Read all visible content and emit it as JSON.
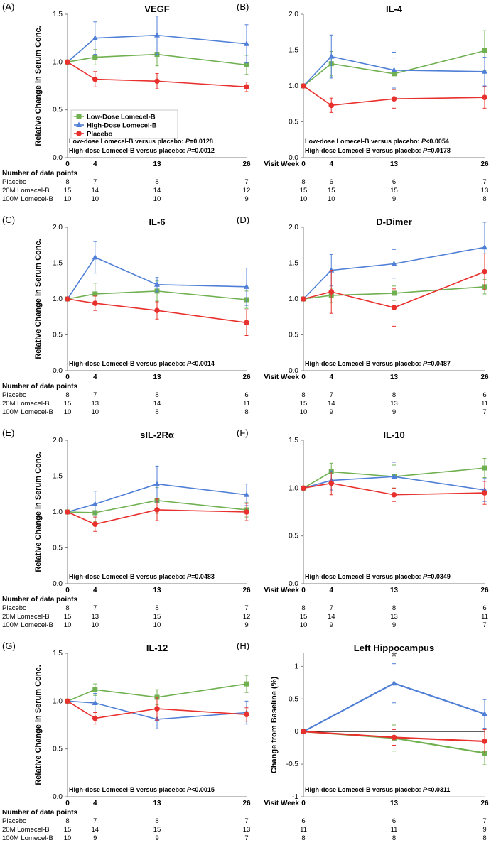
{
  "colors": {
    "low": "#70b051",
    "high": "#4f7fd6",
    "placebo": "#e8302d",
    "axis": "#7f7f7f"
  },
  "legend": {
    "low": "Low-Dose Lomecel-B",
    "high": "High-Dose Lomecel-B",
    "placebo": "Placebo"
  },
  "row_labels": {
    "title": "Number of data points",
    "placebo": "Placebo",
    "low": "20M Lomecel-B",
    "high": "100M Lomecel-B"
  },
  "visit_week_label": "Visit Week",
  "chart_data": [
    {
      "panel": "(A)",
      "title": "VEGF",
      "type": "line",
      "x": [
        0,
        4,
        13,
        26
      ],
      "ylim": [
        0,
        1.5
      ],
      "yticks": [
        0,
        0.5,
        1.0,
        1.5
      ],
      "ylabel": "Relative Change in Serum Conc.",
      "series": [
        {
          "key": "low",
          "values": [
            1.0,
            1.05,
            1.08,
            0.97
          ],
          "err": [
            0,
            0.08,
            0.12,
            0.1
          ]
        },
        {
          "key": "high",
          "values": [
            1.0,
            1.25,
            1.28,
            1.19
          ],
          "err": [
            0,
            0.17,
            0.2,
            0.2
          ]
        },
        {
          "key": "placebo",
          "values": [
            1.0,
            0.82,
            0.8,
            0.74
          ],
          "err": [
            0,
            0.08,
            0.08,
            0.05
          ]
        }
      ],
      "stats": [
        "Low-dose Lomecel-B versus placebo:  |P|=0.0128",
        "High-dose Lomecel-B versus placebo:  |P|=0.0012"
      ],
      "show_legend": true,
      "counts": {
        "placebo": [
          "8",
          "7",
          "8",
          "7"
        ],
        "low": [
          "15",
          "14",
          "14",
          "12"
        ],
        "high": [
          "10",
          "10",
          "10",
          "9"
        ]
      }
    },
    {
      "panel": "(B)",
      "title": "IL-4",
      "type": "line",
      "x": [
        0,
        4,
        13,
        26
      ],
      "ylim": [
        0,
        2.0
      ],
      "yticks": [
        0,
        0.5,
        1.0,
        1.5,
        2.0
      ],
      "ylabel": "",
      "series": [
        {
          "key": "low",
          "values": [
            1.0,
            1.31,
            1.17,
            1.49
          ],
          "err": [
            0,
            0.17,
            0.22,
            0.28
          ]
        },
        {
          "key": "high",
          "values": [
            1.0,
            1.41,
            1.22,
            1.2
          ],
          "err": [
            0,
            0.3,
            0.25,
            0.2
          ]
        },
        {
          "key": "placebo",
          "values": [
            1.0,
            0.73,
            0.82,
            0.84
          ],
          "err": [
            0,
            0.1,
            0.13,
            0.15
          ]
        }
      ],
      "stats": [
        "Low-dose Lomecel-B versus placebo:  |P|<0.0054",
        "High-dose Lomecel-B versus placebo:  |P|=0.0178"
      ],
      "show_legend": false,
      "counts": {
        "placebo": [
          "8",
          "6",
          "6",
          "7"
        ],
        "low": [
          "15",
          "15",
          "15",
          "13"
        ],
        "high": [
          "10",
          "10",
          "9",
          "8"
        ]
      }
    },
    {
      "panel": "(C)",
      "title": "IL-6",
      "type": "line",
      "x": [
        0,
        4,
        13,
        26
      ],
      "ylim": [
        0,
        2.0
      ],
      "yticks": [
        0,
        0.5,
        1.0,
        1.5,
        2.0
      ],
      "ylabel": "Relative Change in Serum Conc.",
      "series": [
        {
          "key": "low",
          "values": [
            1.0,
            1.07,
            1.11,
            0.99
          ],
          "err": [
            0,
            0.15,
            0.14,
            0.12
          ]
        },
        {
          "key": "high",
          "values": [
            1.0,
            1.58,
            1.2,
            1.17
          ],
          "err": [
            0,
            0.22,
            0.1,
            0.26
          ]
        },
        {
          "key": "placebo",
          "values": [
            1.0,
            0.94,
            0.84,
            0.67
          ],
          "err": [
            0,
            0.1,
            0.12,
            0.18
          ]
        }
      ],
      "stats": [
        "High-dose Lomecel-B versus placebo:  |P|<0.0014"
      ],
      "show_legend": false,
      "counts": {
        "placebo": [
          "8",
          "7",
          "8",
          "6"
        ],
        "low": [
          "15",
          "13",
          "14",
          "11"
        ],
        "high": [
          "10",
          "10",
          "8",
          "8"
        ]
      }
    },
    {
      "panel": "(D)",
      "title": "D-Dimer",
      "type": "line",
      "x": [
        0,
        4,
        13,
        26
      ],
      "ylim": [
        0,
        2.0
      ],
      "yticks": [
        0,
        0.5,
        1.0,
        1.5,
        2.0
      ],
      "ylabel": "",
      "series": [
        {
          "key": "low",
          "values": [
            1.0,
            1.05,
            1.08,
            1.17
          ],
          "err": [
            0,
            0.1,
            0.1,
            0.1
          ]
        },
        {
          "key": "high",
          "values": [
            1.0,
            1.4,
            1.49,
            1.72
          ],
          "err": [
            0,
            0.22,
            0.2,
            0.35
          ]
        },
        {
          "key": "placebo",
          "values": [
            1.0,
            1.1,
            0.88,
            1.38
          ],
          "err": [
            0,
            0.3,
            0.26,
            0.25
          ]
        }
      ],
      "stats": [
        "High-dose Lomecel-B versus placebo:  |P|=0.0487"
      ],
      "show_legend": false,
      "counts": {
        "placebo": [
          "8",
          "7",
          "8",
          "6"
        ],
        "low": [
          "15",
          "14",
          "13",
          "11"
        ],
        "high": [
          "10",
          "9",
          "9",
          "7"
        ]
      }
    },
    {
      "panel": "(E)",
      "title": "sIL-2Rα",
      "type": "line",
      "x": [
        0,
        4,
        13,
        26
      ],
      "ylim": [
        0,
        2.0
      ],
      "yticks": [
        0,
        0.5,
        1.0,
        1.5,
        2.0
      ],
      "ylabel": "Relative Change in Serum Conc.",
      "series": [
        {
          "key": "low",
          "values": [
            1.0,
            0.99,
            1.16,
            1.03
          ],
          "err": [
            0,
            0.12,
            0.18,
            0.1
          ]
        },
        {
          "key": "high",
          "values": [
            1.0,
            1.11,
            1.39,
            1.24
          ],
          "err": [
            0,
            0.18,
            0.25,
            0.15
          ]
        },
        {
          "key": "placebo",
          "values": [
            1.0,
            0.83,
            1.03,
            1.0
          ],
          "err": [
            0,
            0.1,
            0.15,
            0.12
          ]
        }
      ],
      "stats": [
        "High-dose Lomecel-B versus placebo:  |P|=0.0483"
      ],
      "show_legend": false,
      "counts": {
        "placebo": [
          "8",
          "7",
          "8",
          "7"
        ],
        "low": [
          "15",
          "13",
          "15",
          "12"
        ],
        "high": [
          "10",
          "10",
          "10",
          "9"
        ]
      }
    },
    {
      "panel": "(F)",
      "title": "IL-10",
      "type": "line",
      "x": [
        0,
        4,
        13,
        26
      ],
      "ylim": [
        0,
        1.5
      ],
      "yticks": [
        0,
        0.5,
        1.0,
        1.5
      ],
      "ylabel": "",
      "series": [
        {
          "key": "low",
          "values": [
            1.0,
            1.17,
            1.12,
            1.21
          ],
          "err": [
            0,
            0.09,
            0.12,
            0.1
          ]
        },
        {
          "key": "high",
          "values": [
            1.0,
            1.08,
            1.12,
            0.98
          ],
          "err": [
            0,
            0.1,
            0.15,
            0.12
          ]
        },
        {
          "key": "placebo",
          "values": [
            1.0,
            1.05,
            0.93,
            0.95
          ],
          "err": [
            0,
            0.12,
            0.07,
            0.12
          ]
        }
      ],
      "stats": [
        "High-dose Lomecel-B versus placebo:  |P|=0.0349"
      ],
      "show_legend": false,
      "counts": {
        "placebo": [
          "8",
          "7",
          "8",
          "6"
        ],
        "low": [
          "15",
          "14",
          "13",
          "11"
        ],
        "high": [
          "10",
          "9",
          "9",
          "7"
        ]
      }
    },
    {
      "panel": "(G)",
      "title": "IL-12",
      "type": "line",
      "x": [
        0,
        4,
        13,
        26
      ],
      "ylim": [
        0,
        1.5
      ],
      "yticks": [
        0,
        0.5,
        1.0,
        1.5
      ],
      "ylabel": "Relative Change in Serum Conc.",
      "series": [
        {
          "key": "low",
          "values": [
            1.0,
            1.12,
            1.04,
            1.18
          ],
          "err": [
            0,
            0.06,
            0.08,
            0.09
          ]
        },
        {
          "key": "high",
          "values": [
            1.0,
            0.98,
            0.81,
            0.88
          ],
          "err": [
            0,
            0.1,
            0.1,
            0.12
          ]
        },
        {
          "key": "placebo",
          "values": [
            1.0,
            0.82,
            0.92,
            0.86
          ],
          "err": [
            0,
            0.06,
            0.12,
            0.07
          ]
        }
      ],
      "stats": [
        "High-dose Lomecel-B versus placebo:  |P|<0.0015"
      ],
      "show_legend": false,
      "counts": {
        "placebo": [
          "8",
          "7",
          "8",
          "7"
        ],
        "low": [
          "15",
          "14",
          "15",
          "13"
        ],
        "high": [
          "10",
          "9",
          "9",
          "7"
        ]
      }
    },
    {
      "panel": "(H)",
      "title": "Left Hippocampus",
      "type": "line",
      "x": [
        0,
        13,
        26
      ],
      "ylim": [
        -1,
        1.2
      ],
      "yticks": [
        -1,
        -0.5,
        0,
        0.5,
        1
      ],
      "ylabel": "Change from Baseline (%)",
      "series": [
        {
          "key": "low",
          "values": [
            0,
            -0.1,
            -0.33
          ],
          "err": [
            0,
            0.2,
            0.18
          ]
        },
        {
          "key": "high",
          "values": [
            0,
            0.74,
            0.27
          ],
          "err": [
            0,
            0.3,
            0.22
          ]
        },
        {
          "key": "placebo",
          "values": [
            0,
            -0.09,
            -0.15
          ],
          "err": [
            0,
            0.12,
            0.18
          ]
        }
      ],
      "stats": [
        "High-dose Lomecel-B versus placebo:  |P|<0.0311"
      ],
      "annotation": "*",
      "show_legend": false,
      "counts": {
        "placebo": [
          "6",
          "6",
          "7"
        ],
        "low": [
          "11",
          "11",
          "9"
        ],
        "high": [
          "8",
          "8",
          "8"
        ]
      }
    }
  ]
}
